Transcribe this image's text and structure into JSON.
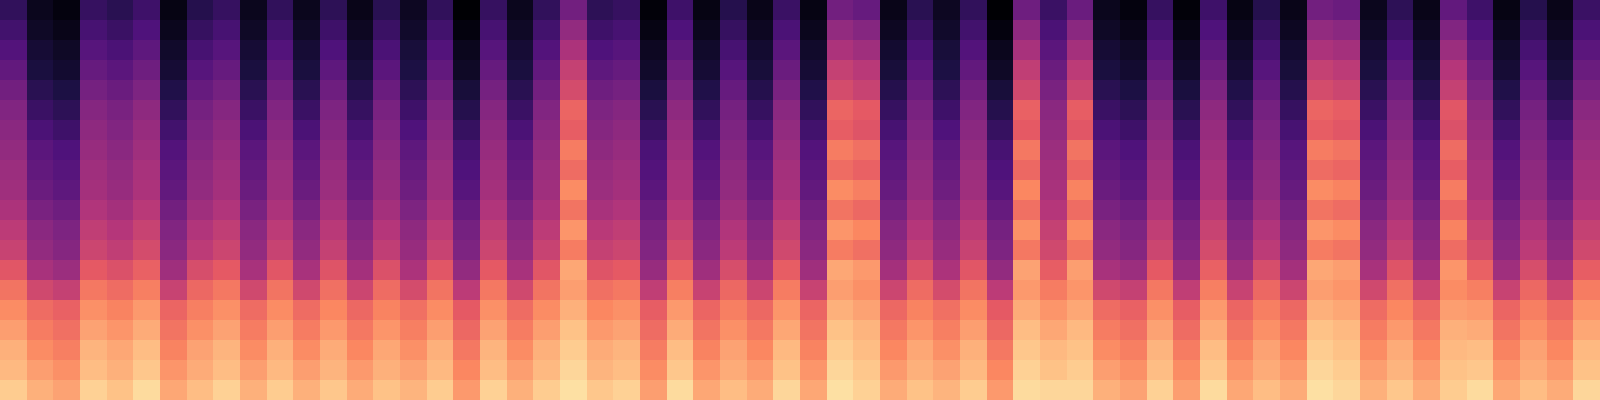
{
  "chart_data": {
    "type": "heatmap",
    "tick_labels": false,
    "zlim": [
      0,
      100
    ],
    "cells": [
      [
        90,
        84,
        81,
        91,
        88,
        93,
        82,
        87,
        91,
        84,
        90,
        84,
        89,
        83,
        88,
        85,
        90,
        79,
        91,
        84,
        90,
        94,
        89,
        91,
        80,
        93,
        82,
        87,
        83,
        92,
        82,
        94,
        91,
        83,
        88,
        85,
        90,
        79,
        93,
        92,
        92,
        84,
        81,
        91,
        80,
        93,
        82,
        87,
        83,
        94,
        92,
        84,
        89,
        83,
        90,
        93,
        82,
        87,
        83,
        92
      ],
      [
        86,
        80,
        77,
        87,
        84,
        89,
        78,
        83,
        87,
        80,
        86,
        80,
        85,
        79,
        84,
        81,
        86,
        75,
        87,
        80,
        86,
        92,
        85,
        87,
        76,
        89,
        78,
        83,
        79,
        88,
        78,
        92,
        89,
        79,
        84,
        81,
        86,
        75,
        91,
        88,
        90,
        80,
        77,
        87,
        76,
        89,
        78,
        83,
        79,
        92,
        90,
        80,
        85,
        79,
        88,
        89,
        78,
        83,
        79,
        88
      ],
      [
        84,
        76,
        73,
        85,
        82,
        87,
        74,
        81,
        85,
        76,
        84,
        76,
        83,
        75,
        82,
        77,
        84,
        71,
        85,
        76,
        84,
        90,
        83,
        85,
        72,
        87,
        74,
        81,
        75,
        86,
        74,
        90,
        87,
        75,
        82,
        77,
        84,
        71,
        89,
        86,
        88,
        76,
        73,
        85,
        72,
        87,
        74,
        81,
        75,
        90,
        88,
        76,
        83,
        75,
        86,
        87,
        74,
        81,
        75,
        86
      ],
      [
        80,
        72,
        69,
        81,
        78,
        83,
        70,
        77,
        81,
        72,
        80,
        72,
        79,
        71,
        78,
        73,
        80,
        67,
        81,
        72,
        80,
        88,
        79,
        81,
        68,
        83,
        70,
        77,
        71,
        82,
        70,
        88,
        85,
        71,
        78,
        73,
        80,
        67,
        87,
        82,
        86,
        72,
        69,
        81,
        68,
        83,
        70,
        77,
        71,
        88,
        86,
        72,
        79,
        71,
        84,
        83,
        70,
        77,
        71,
        82
      ],
      [
        76,
        68,
        65,
        77,
        74,
        79,
        66,
        73,
        77,
        68,
        76,
        68,
        75,
        67,
        74,
        69,
        76,
        63,
        77,
        68,
        76,
        84,
        75,
        77,
        64,
        79,
        66,
        73,
        67,
        78,
        66,
        84,
        81,
        67,
        74,
        69,
        76,
        63,
        83,
        78,
        82,
        68,
        65,
        77,
        64,
        79,
        66,
        73,
        67,
        84,
        82,
        68,
        75,
        67,
        80,
        79,
        66,
        73,
        67,
        78
      ],
      [
        70,
        57,
        54,
        71,
        68,
        73,
        55,
        67,
        71,
        57,
        70,
        57,
        69,
        56,
        68,
        58,
        70,
        52,
        71,
        57,
        70,
        80,
        69,
        71,
        53,
        73,
        55,
        67,
        56,
        72,
        55,
        80,
        77,
        56,
        68,
        58,
        70,
        52,
        79,
        72,
        78,
        57,
        54,
        71,
        53,
        73,
        55,
        67,
        56,
        80,
        78,
        57,
        69,
        56,
        76,
        73,
        55,
        67,
        56,
        72
      ],
      [
        62,
        47,
        44,
        63,
        60,
        65,
        45,
        59,
        63,
        47,
        62,
        47,
        61,
        46,
        60,
        48,
        62,
        42,
        63,
        47,
        62,
        82,
        61,
        63,
        43,
        65,
        45,
        59,
        46,
        64,
        45,
        82,
        79,
        46,
        60,
        48,
        62,
        42,
        81,
        64,
        80,
        47,
        44,
        63,
        43,
        65,
        45,
        59,
        46,
        82,
        80,
        47,
        61,
        46,
        78,
        65,
        45,
        59,
        46,
        64
      ],
      [
        55,
        42,
        39,
        56,
        53,
        58,
        40,
        52,
        56,
        42,
        55,
        42,
        54,
        41,
        53,
        43,
        55,
        37,
        56,
        42,
        55,
        72,
        54,
        56,
        38,
        58,
        40,
        52,
        41,
        57,
        40,
        72,
        69,
        41,
        53,
        43,
        55,
        37,
        71,
        57,
        70,
        42,
        39,
        56,
        38,
        58,
        40,
        52,
        41,
        72,
        70,
        42,
        54,
        41,
        68,
        58,
        40,
        52,
        41,
        57
      ],
      [
        52,
        40,
        37,
        53,
        50,
        55,
        38,
        49,
        53,
        40,
        52,
        40,
        51,
        39,
        50,
        41,
        52,
        35,
        53,
        40,
        52,
        78,
        51,
        53,
        36,
        55,
        38,
        49,
        39,
        54,
        38,
        78,
        75,
        39,
        50,
        41,
        52,
        35,
        77,
        54,
        76,
        40,
        37,
        53,
        36,
        55,
        38,
        49,
        39,
        78,
        76,
        40,
        51,
        39,
        74,
        55,
        38,
        49,
        39,
        54
      ],
      [
        48,
        36,
        33,
        49,
        46,
        51,
        34,
        45,
        49,
        36,
        48,
        36,
        47,
        35,
        46,
        37,
        48,
        31,
        49,
        36,
        48,
        70,
        47,
        49,
        32,
        51,
        34,
        45,
        35,
        50,
        34,
        70,
        67,
        35,
        46,
        37,
        48,
        31,
        69,
        50,
        68,
        36,
        33,
        49,
        32,
        51,
        34,
        45,
        35,
        70,
        68,
        36,
        47,
        35,
        66,
        51,
        34,
        45,
        35,
        50
      ],
      [
        45,
        32,
        29,
        46,
        43,
        48,
        30,
        42,
        46,
        32,
        45,
        32,
        44,
        31,
        43,
        33,
        45,
        27,
        46,
        32,
        45,
        76,
        44,
        46,
        28,
        48,
        30,
        42,
        31,
        47,
        30,
        76,
        73,
        31,
        43,
        33,
        45,
        27,
        75,
        47,
        74,
        32,
        29,
        46,
        28,
        48,
        30,
        42,
        31,
        76,
        74,
        32,
        44,
        31,
        72,
        48,
        30,
        42,
        31,
        47
      ],
      [
        44,
        30,
        27,
        45,
        42,
        47,
        28,
        41,
        45,
        30,
        44,
        30,
        43,
        29,
        42,
        31,
        44,
        25,
        45,
        30,
        44,
        68,
        43,
        45,
        26,
        47,
        28,
        41,
        29,
        46,
        28,
        68,
        65,
        29,
        42,
        31,
        44,
        25,
        67,
        46,
        66,
        30,
        27,
        45,
        26,
        47,
        28,
        41,
        29,
        68,
        66,
        30,
        43,
        29,
        64,
        47,
        28,
        41,
        29,
        46
      ],
      [
        42,
        28,
        25,
        43,
        40,
        45,
        26,
        39,
        43,
        28,
        42,
        28,
        41,
        27,
        40,
        29,
        42,
        23,
        43,
        28,
        42,
        72,
        41,
        43,
        24,
        45,
        26,
        39,
        27,
        44,
        26,
        72,
        69,
        27,
        40,
        29,
        42,
        23,
        71,
        44,
        70,
        28,
        25,
        43,
        24,
        45,
        26,
        39,
        27,
        72,
        70,
        28,
        41,
        27,
        68,
        45,
        26,
        39,
        27,
        44
      ],
      [
        40,
        24,
        21,
        41,
        38,
        43,
        22,
        37,
        41,
        24,
        40,
        24,
        39,
        23,
        38,
        25,
        40,
        19,
        41,
        24,
        40,
        64,
        39,
        41,
        20,
        43,
        22,
        37,
        23,
        42,
        22,
        64,
        61,
        23,
        38,
        25,
        40,
        19,
        63,
        42,
        62,
        24,
        21,
        41,
        20,
        43,
        22,
        37,
        23,
        64,
        62,
        24,
        39,
        23,
        60,
        43,
        22,
        37,
        23,
        42
      ],
      [
        38,
        20,
        17,
        39,
        36,
        41,
        18,
        35,
        39,
        20,
        38,
        20,
        37,
        19,
        36,
        21,
        38,
        15,
        39,
        20,
        38,
        66,
        37,
        39,
        16,
        41,
        18,
        35,
        19,
        40,
        18,
        66,
        63,
        19,
        36,
        21,
        38,
        15,
        65,
        40,
        64,
        20,
        17,
        39,
        16,
        41,
        18,
        35,
        19,
        66,
        64,
        20,
        37,
        19,
        62,
        41,
        18,
        35,
        19,
        40
      ],
      [
        34,
        16,
        13,
        35,
        32,
        37,
        14,
        31,
        35,
        16,
        34,
        16,
        33,
        15,
        32,
        17,
        34,
        11,
        35,
        16,
        34,
        58,
        33,
        35,
        12,
        37,
        14,
        31,
        15,
        36,
        14,
        58,
        55,
        15,
        32,
        17,
        34,
        11,
        57,
        36,
        56,
        16,
        13,
        35,
        12,
        37,
        14,
        31,
        15,
        58,
        56,
        16,
        33,
        15,
        54,
        37,
        14,
        31,
        15,
        36
      ],
      [
        30,
        12,
        9,
        31,
        28,
        33,
        10,
        27,
        31,
        12,
        30,
        12,
        29,
        11,
        28,
        13,
        30,
        7,
        31,
        12,
        30,
        54,
        29,
        31,
        8,
        33,
        10,
        27,
        11,
        32,
        10,
        54,
        51,
        11,
        28,
        13,
        30,
        7,
        53,
        32,
        52,
        12,
        9,
        31,
        8,
        33,
        10,
        27,
        11,
        54,
        52,
        12,
        29,
        11,
        50,
        33,
        10,
        27,
        11,
        32
      ],
      [
        26,
        10,
        7,
        27,
        24,
        29,
        8,
        23,
        27,
        10,
        26,
        10,
        25,
        9,
        24,
        11,
        26,
        5,
        27,
        10,
        26,
        48,
        25,
        27,
        6,
        29,
        8,
        23,
        9,
        28,
        8,
        48,
        45,
        9,
        24,
        11,
        26,
        5,
        47,
        28,
        46,
        10,
        7,
        27,
        6,
        29,
        8,
        23,
        9,
        48,
        46,
        10,
        25,
        9,
        44,
        29,
        8,
        23,
        9,
        28
      ],
      [
        22,
        7,
        4,
        23,
        20,
        25,
        5,
        19,
        23,
        7,
        22,
        7,
        21,
        6,
        20,
        8,
        22,
        2,
        23,
        7,
        22,
        42,
        21,
        23,
        3,
        25,
        5,
        19,
        6,
        24,
        5,
        42,
        39,
        6,
        20,
        8,
        22,
        2,
        41,
        24,
        40,
        7,
        4,
        23,
        3,
        25,
        5,
        19,
        6,
        42,
        40,
        7,
        21,
        6,
        38,
        25,
        5,
        19,
        6,
        24
      ],
      [
        18,
        5,
        2,
        19,
        16,
        21,
        3,
        15,
        19,
        5,
        18,
        5,
        17,
        4,
        16,
        6,
        18,
        0,
        19,
        5,
        18,
        34,
        17,
        19,
        1,
        21,
        3,
        15,
        4,
        20,
        3,
        34,
        31,
        4,
        16,
        6,
        18,
        0,
        33,
        20,
        32,
        5,
        2,
        19,
        1,
        21,
        3,
        15,
        4,
        34,
        32,
        5,
        17,
        4,
        30,
        21,
        3,
        15,
        4,
        20
      ]
    ]
  }
}
